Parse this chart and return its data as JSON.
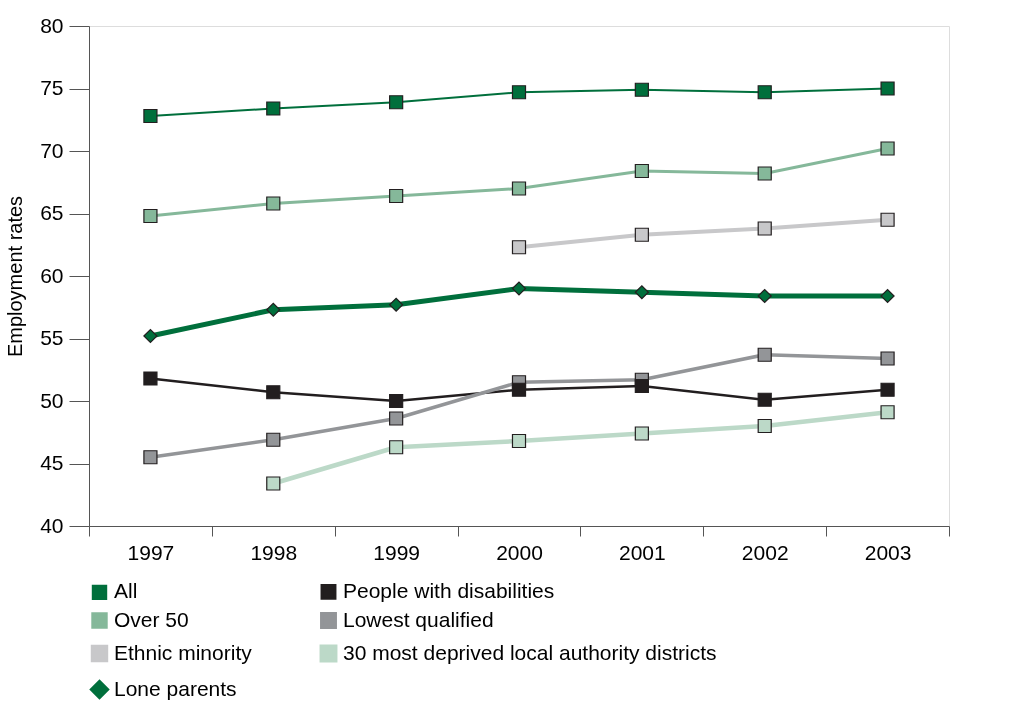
{
  "chart_data": {
    "type": "line",
    "ylabel": "Employment rates",
    "categories": [
      "1997",
      "1998",
      "1999",
      "2000",
      "2001",
      "2002",
      "2003"
    ],
    "ylim": [
      40,
      80
    ],
    "yticks": [
      40,
      45,
      50,
      55,
      60,
      65,
      70,
      75,
      80
    ],
    "grid": false,
    "legend": "bottom",
    "series": [
      {
        "name": "All",
        "color": "#006f3c",
        "marker": "square",
        "values": [
          72.8,
          73.4,
          73.9,
          74.7,
          74.9,
          74.7,
          75.0
        ]
      },
      {
        "name": "Over 50",
        "color": "#85b89a",
        "marker": "square",
        "values": [
          64.8,
          65.8,
          66.4,
          67.0,
          68.4,
          68.2,
          70.2
        ]
      },
      {
        "name": "Ethnic minority",
        "color": "#c8c8ca",
        "marker": "square",
        "values": [
          null,
          null,
          null,
          62.3,
          63.3,
          63.8,
          64.5
        ]
      },
      {
        "name": "Lone parents",
        "color": "#006f3c",
        "marker": "diamond",
        "values": [
          55.2,
          57.3,
          57.7,
          59.0,
          58.7,
          58.4,
          58.4
        ]
      },
      {
        "name": "People with disabilities",
        "color": "#221e1f",
        "marker": "square",
        "values": [
          51.8,
          50.7,
          50.0,
          50.9,
          51.2,
          50.1,
          50.9
        ]
      },
      {
        "name": "Lowest qualified",
        "color": "#939598",
        "marker": "square",
        "values": [
          45.5,
          46.9,
          48.6,
          51.5,
          51.7,
          53.7,
          53.4
        ]
      },
      {
        "name": "30 most deprived local authority districts",
        "color": "#bcd9c8",
        "marker": "square",
        "values": [
          null,
          43.4,
          46.3,
          46.8,
          47.4,
          48.0,
          49.1
        ]
      }
    ]
  }
}
